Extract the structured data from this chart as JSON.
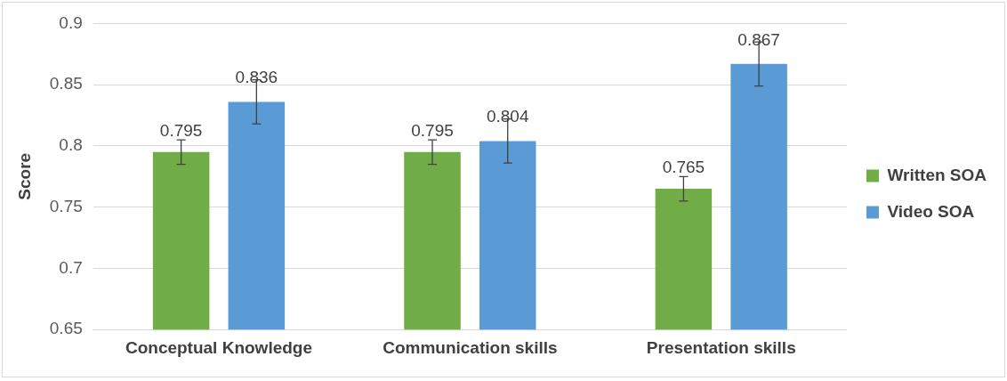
{
  "chart_data": {
    "type": "bar",
    "ylabel": "Score",
    "categories": [
      "Conceptual Knowledge",
      "Communication skills",
      "Presentation skills"
    ],
    "series": [
      {
        "name": "Written SOA",
        "color": "#70ad47",
        "values": [
          0.795,
          0.795,
          0.765
        ],
        "errors": [
          0.01,
          0.01,
          0.01
        ]
      },
      {
        "name": "Video SOA",
        "color": "#5b9bd5",
        "values": [
          0.836,
          0.804,
          0.867
        ],
        "errors": [
          0.018,
          0.018,
          0.018
        ]
      }
    ],
    "ylim": [
      0.65,
      0.9
    ],
    "yticks": [
      0.65,
      0.7,
      0.75,
      0.8,
      0.85,
      0.9
    ],
    "grid": "y",
    "legend": "right",
    "data_labels": true
  }
}
